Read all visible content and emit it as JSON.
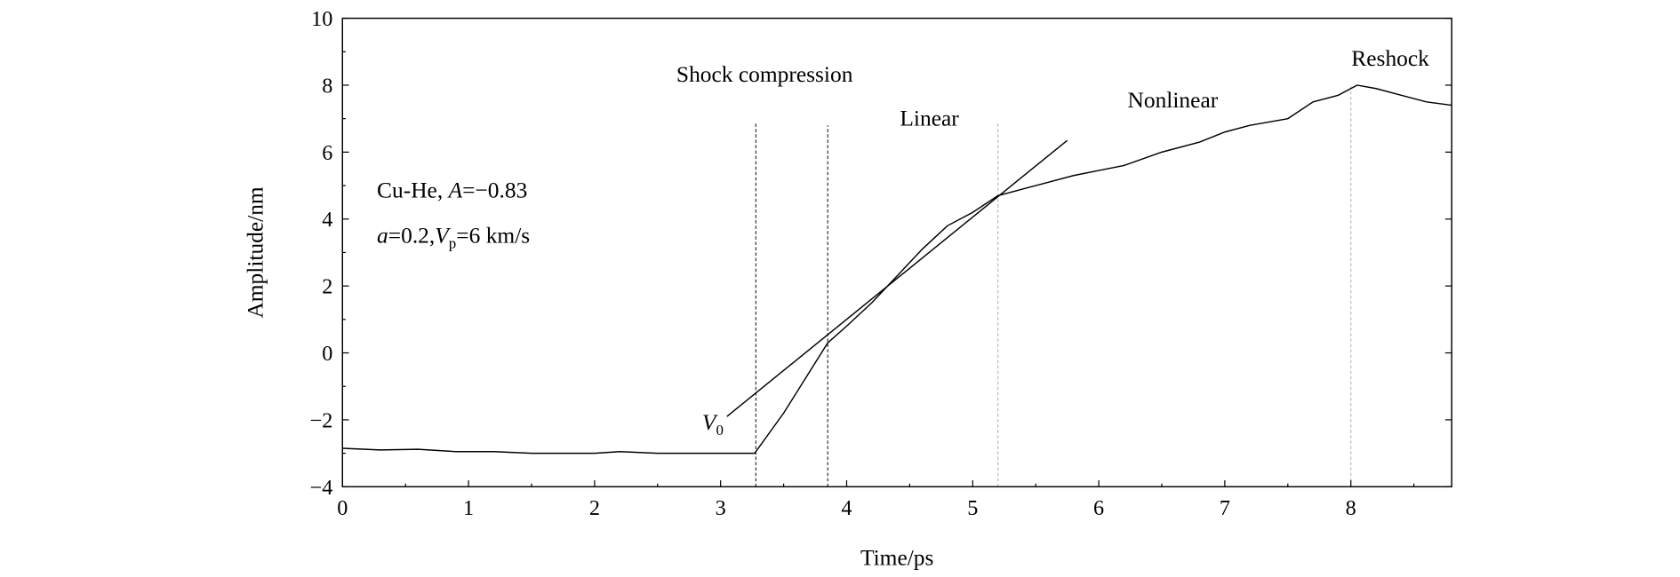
{
  "chart_data": {
    "type": "line",
    "xlabel": "Time/ps",
    "ylabel": "Amplitude/nm",
    "xlim": [
      0,
      8.8
    ],
    "ylim": [
      -4,
      10
    ],
    "xticks": [
      "0",
      "1",
      "2",
      "3",
      "4",
      "5",
      "6",
      "7",
      "8"
    ],
    "yticks": [
      "−4",
      "−2",
      "0",
      "2",
      "4",
      "6",
      "8",
      "10"
    ],
    "grid": false,
    "series": [
      {
        "x": [
          0,
          0.3,
          0.6,
          0.9,
          1.2,
          1.5,
          2.0,
          2.2,
          2.5,
          3.0,
          3.27,
          3.5,
          3.7,
          3.85,
          4.0,
          4.2,
          4.4,
          4.6,
          4.8,
          5.0,
          5.2,
          5.4,
          5.6,
          5.8,
          6.0,
          6.2,
          6.5,
          6.8,
          7.0,
          7.2,
          7.5,
          7.7,
          7.9,
          8.05,
          8.2,
          8.4,
          8.6,
          8.8
        ],
        "y": [
          -2.85,
          -2.9,
          -2.88,
          -2.95,
          -2.95,
          -3.0,
          -3.0,
          -2.95,
          -3.0,
          -3.0,
          -3.0,
          -1.8,
          -0.6,
          0.3,
          0.8,
          1.5,
          2.3,
          3.1,
          3.8,
          4.2,
          4.7,
          4.9,
          5.1,
          5.3,
          5.45,
          5.6,
          6.0,
          6.3,
          6.6,
          6.8,
          7.0,
          7.5,
          7.7,
          8.0,
          7.9,
          7.7,
          7.5,
          7.4
        ]
      }
    ],
    "tangent_line": {
      "x": [
        3.05,
        5.75
      ],
      "y": [
        -1.9,
        6.35
      ]
    },
    "vertical_markers": [
      {
        "x": 3.28,
        "ymax": 6.9,
        "color": "#333333"
      },
      {
        "x": 3.85,
        "ymax": 6.8,
        "color": "#333333"
      },
      {
        "x": 5.2,
        "ymax": 6.9,
        "color": "#bbbbbb"
      },
      {
        "x": 8.0,
        "ymax": 8.0,
        "color": "#bbbbbb"
      }
    ],
    "annotations": {
      "shock": "Shock compression",
      "linear": "Linear",
      "nonlinear": "Nonlinear",
      "reshock": "Reshock",
      "v0_main": "V",
      "v0_sub": "0",
      "param1_a": "Cu-He, ",
      "param1_b": "A",
      "param1_c": "=−0.83",
      "param2_a": "a",
      "param2_b": "=0.2,",
      "param2_c": "V",
      "param2_d": "p",
      "param2_e": "=6 km/s"
    }
  }
}
